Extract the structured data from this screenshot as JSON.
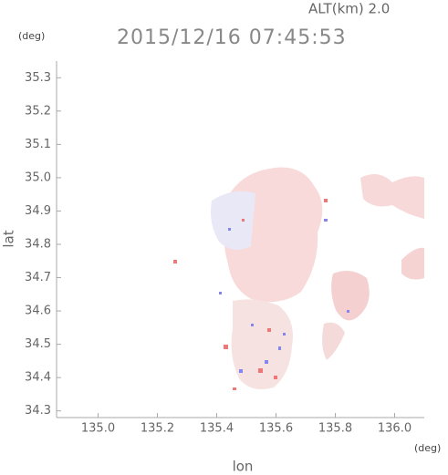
{
  "chart_data": {
    "type": "map",
    "title": "2015/12/16 07:45:53",
    "altitude_label": "ALT(km) 2.0",
    "y_unit": "(deg)",
    "x_unit": "(deg)",
    "xlabel": "lon",
    "ylabel": "lat",
    "xlim": [
      134.86,
      136.1
    ],
    "xticks": [
      {
        "value": 135.0,
        "label": "135.0"
      },
      {
        "value": 135.2,
        "label": "135.2"
      },
      {
        "value": 135.4,
        "label": "135.4"
      },
      {
        "value": 135.6,
        "label": "135.6"
      },
      {
        "value": 135.8,
        "label": "135.8"
      },
      {
        "value": 136.0,
        "label": "136.0"
      }
    ],
    "ylim": [
      34.28,
      35.35
    ],
    "yticks": [
      {
        "value": 34.3,
        "label": "34.3"
      },
      34.4,
      34.5,
      34.6,
      34.7,
      34.8,
      34.9,
      {
        "value": 35.0,
        "label": "35.0"
      },
      35.1,
      35.2,
      35.3
    ]
  }
}
